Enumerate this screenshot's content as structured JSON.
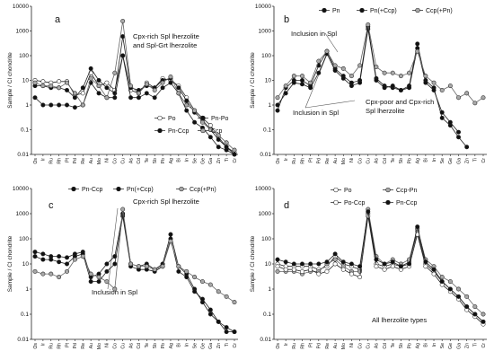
{
  "chart_data": [
    {
      "type": "line",
      "panel": "a",
      "ylabel": "Sample / CI chondrite",
      "yscale": "log",
      "ylim": [
        0.01,
        10000
      ],
      "yticks": [
        "0.01",
        "0.1",
        "1",
        "10",
        "100",
        "1000",
        "10000"
      ],
      "categories": [
        "Os",
        "Ir",
        "Ru",
        "Rh",
        "Pt",
        "Pd",
        "Re",
        "Au",
        "Mo",
        "Ni",
        "Co",
        "Cu",
        "As",
        "Cd",
        "Te",
        "Sb",
        "Pb",
        "Ag",
        "Bi",
        "In",
        "Se",
        "Ge",
        "Ga",
        "Zn",
        "Ti",
        "Cr"
      ],
      "annotations": [
        {
          "text": "Cpx-rich Spl lherzolite"
        },
        {
          "text": "and Spl-Grt lherzolite"
        }
      ],
      "legend_position": "right",
      "series": [
        {
          "name": "Po",
          "marker": "open",
          "values": [
            10,
            9,
            8,
            9,
            9,
            2.5,
            3,
            20,
            6,
            8,
            4,
            100,
            4,
            3,
            8,
            5,
            12,
            10,
            6,
            2,
            0.6,
            0.3,
            0.15,
            0.05,
            0.02,
            0.012
          ]
        },
        {
          "name": "Pn-Po",
          "marker": "filled",
          "values": [
            6,
            6,
            5,
            5,
            4,
            2,
            5,
            30,
            10,
            5,
            3,
            600,
            5,
            4,
            6,
            5,
            10,
            12,
            5,
            1.5,
            0.5,
            0.25,
            0.1,
            0.04,
            0.02,
            0.01
          ]
        },
        {
          "name": "Pn-Ccp",
          "marker": "filled",
          "values": [
            2,
            1,
            1,
            1,
            1,
            0.8,
            1,
            8,
            3,
            2,
            2,
            100,
            2,
            2,
            3,
            2,
            5,
            8,
            3,
            0.6,
            0.2,
            0.12,
            0.05,
            0.02,
            0.015,
            0.01
          ]
        },
        {
          "name": "Ccp",
          "marker": "gray",
          "values": [
            8,
            6,
            6,
            5,
            8,
            3,
            1,
            12,
            6,
            2,
            20,
            2500,
            6,
            3,
            7,
            4,
            8,
            14,
            3,
            1,
            0.6,
            0.2,
            0.1,
            0.06,
            0.03,
            0.015
          ]
        }
      ]
    },
    {
      "type": "line",
      "panel": "b",
      "ylabel": "Sample / CI chondrite",
      "yscale": "log",
      "ylim": [
        0.01,
        10000
      ],
      "yticks": [
        "0.01",
        "0.1",
        "1",
        "10",
        "100",
        "1000",
        "10000"
      ],
      "categories": [
        "Os",
        "Ir",
        "Ru",
        "Rh",
        "Pt",
        "Pd",
        "Re",
        "Au",
        "Mo",
        "Ni",
        "Co",
        "Cu",
        "As",
        "Cd",
        "Te",
        "Sb",
        "Pb",
        "Ag",
        "Bi",
        "In",
        "Se",
        "Ge",
        "Ga",
        "Zn",
        "Ti",
        "Cr"
      ],
      "annotations": [
        {
          "text": "Inclusion in Spl"
        },
        {
          "text": "Inclusion in Spl"
        },
        {
          "text": "Cpx-poor and Cpx-rich"
        },
        {
          "text": "Spl lherzolite"
        }
      ],
      "legend_position": "top",
      "series": [
        {
          "name": "Pn",
          "marker": "filled",
          "values": [
            0.6,
            5,
            10,
            10,
            6,
            40,
            150,
            30,
            15,
            8,
            10,
            1500,
            12,
            6,
            5,
            4,
            6,
            300,
            10,
            5,
            0.3,
            0.15,
            0.05,
            0.02,
            null,
            null
          ]
        },
        {
          "name": "Pn(+Ccp)",
          "marker": "filled",
          "values": [
            1,
            3,
            8,
            7,
            5,
            20,
            120,
            25,
            12,
            6,
            8,
            1200,
            10,
            5,
            6,
            4,
            5,
            200,
            8,
            4,
            0.5,
            0.2,
            0.08,
            null,
            null,
            null
          ]
        },
        {
          "name": "Ccp(+Pn)",
          "marker": "gray",
          "values": [
            2,
            6,
            15,
            15,
            8,
            60,
            150,
            40,
            30,
            15,
            40,
            1800,
            35,
            20,
            20,
            15,
            20,
            150,
            15,
            8,
            4,
            6,
            2,
            3,
            1.2,
            2
          ]
        }
      ]
    },
    {
      "type": "line",
      "panel": "c",
      "ylabel": "Sample / CI chondrite",
      "yscale": "log",
      "ylim": [
        0.01,
        10000
      ],
      "yticks": [
        "0.01",
        "0.1",
        "1",
        "10",
        "100",
        "1000",
        "10000"
      ],
      "categories": [
        "Os",
        "Ir",
        "Ru",
        "Rh",
        "Pt",
        "Pd",
        "Re",
        "Au",
        "Mo",
        "Ni",
        "Co",
        "Cu",
        "As",
        "Cd",
        "Te",
        "Sb",
        "Pb",
        "Ag",
        "Bi",
        "In",
        "Se",
        "Ge",
        "Ga",
        "Zn",
        "Ti",
        "Cr"
      ],
      "annotations": [
        {
          "text": "Cpx-rich Spl lherzolite"
        },
        {
          "text": "Inclusion in Spl"
        }
      ],
      "legend_position": "top",
      "series": [
        {
          "name": "Pn-Ccp",
          "marker": "filled",
          "values": [
            30,
            25,
            20,
            20,
            18,
            25,
            30,
            3,
            4,
            10,
            20,
            1000,
            10,
            8,
            10,
            6,
            10,
            150,
            8,
            4,
            1,
            0.3,
            0.1,
            0.05,
            0.02,
            0.02
          ]
        },
        {
          "name": "Pn(+Ccp)",
          "marker": "filled",
          "values": [
            20,
            15,
            15,
            12,
            10,
            20,
            25,
            2,
            2,
            5,
            10,
            800,
            8,
            6,
            6,
            5,
            8,
            100,
            5,
            3,
            0.8,
            0.4,
            0.15,
            0.05,
            0.03,
            0.02
          ]
        },
        {
          "name": "Ccp(+Pn)",
          "marker": "gray",
          "values": [
            5,
            4,
            4,
            3,
            5,
            15,
            20,
            4,
            3,
            2,
            1,
            1500,
            10,
            8,
            8,
            6,
            8,
            80,
            8,
            5,
            3,
            2,
            1.5,
            0.8,
            0.5,
            0.3
          ]
        }
      ]
    },
    {
      "type": "line",
      "panel": "d",
      "ylabel": "Sample / CI chondrite",
      "yscale": "log",
      "ylim": [
        0.01,
        10000
      ],
      "yticks": [
        "0.01",
        "0.1",
        "1",
        "10",
        "100",
        "1000",
        "10000"
      ],
      "categories": [
        "Os",
        "Ir",
        "Ru",
        "Rh",
        "Pt",
        "Pd",
        "Re",
        "Au",
        "Mo",
        "Ni",
        "Co",
        "Cu",
        "As",
        "Cd",
        "Te",
        "Sb",
        "Pb",
        "Ag",
        "Bi",
        "In",
        "Se",
        "Ge",
        "Ga",
        "Zn",
        "Ti",
        "Cr"
      ],
      "annotations": [
        {
          "text": "All lherzolite types"
        }
      ],
      "legend_position": "top",
      "series": [
        {
          "name": "Po",
          "marker": "open",
          "values": [
            10,
            8,
            8,
            8,
            8,
            6,
            8,
            20,
            10,
            8,
            6,
            1000,
            10,
            8,
            10,
            8,
            12,
            200,
            10,
            5,
            2,
            1,
            0.5,
            0.2,
            0.1,
            0.05
          ]
        },
        {
          "name": "Ccp-Pn",
          "marker": "gray",
          "values": [
            5,
            5,
            5,
            4,
            5,
            5,
            10,
            15,
            8,
            5,
            5,
            1500,
            20,
            10,
            15,
            10,
            15,
            250,
            15,
            8,
            3,
            2,
            1,
            0.5,
            0.2,
            0.1
          ]
        },
        {
          "name": "Po-Ccp",
          "marker": "open",
          "values": [
            8,
            6,
            6,
            5,
            6,
            4,
            5,
            10,
            6,
            4,
            3,
            800,
            8,
            6,
            8,
            6,
            8,
            150,
            8,
            4,
            1.5,
            0.8,
            0.4,
            0.15,
            0.08,
            0.04
          ]
        },
        {
          "name": "Pn-Ccp",
          "marker": "filled",
          "values": [
            15,
            12,
            10,
            10,
            10,
            10,
            12,
            25,
            12,
            10,
            8,
            1200,
            15,
            10,
            12,
            8,
            10,
            300,
            12,
            6,
            2,
            1,
            0.5,
            0.2,
            0.1,
            0.05
          ]
        }
      ]
    }
  ]
}
